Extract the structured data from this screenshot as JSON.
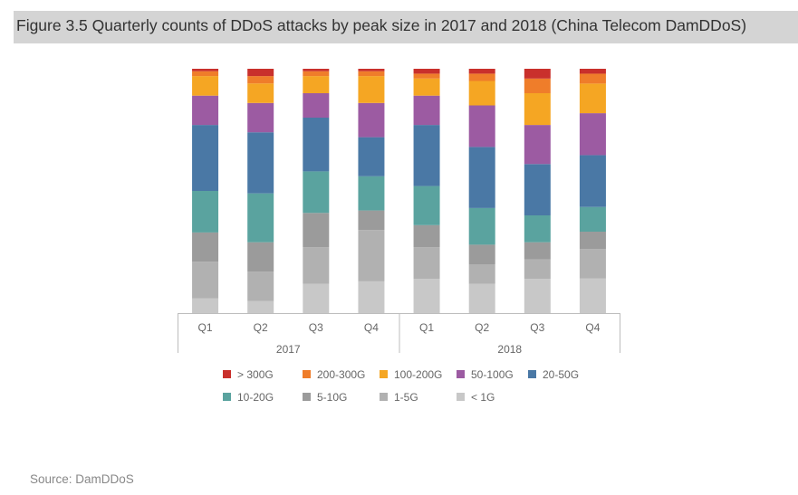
{
  "title": "Figure 3.5 Quarterly counts of DDoS attacks by peak size in 2017 and 2018 (China Telecom DamDDoS)",
  "source": "Source: DamDDoS",
  "chart_data": {
    "type": "bar",
    "stacked": true,
    "normalized": true,
    "categories": [
      "Q1",
      "Q2",
      "Q3",
      "Q4",
      "Q1",
      "Q2",
      "Q3",
      "Q4"
    ],
    "groups": [
      {
        "label": "2017",
        "categories": [
          "Q1",
          "Q2",
          "Q3",
          "Q4"
        ]
      },
      {
        "label": "2018",
        "categories": [
          "Q1",
          "Q2",
          "Q3",
          "Q4"
        ]
      }
    ],
    "series": [
      {
        "name": "< 1G",
        "color": "#c8c8c8",
        "values": [
          6,
          5,
          12,
          13,
          14,
          12,
          14,
          14
        ]
      },
      {
        "name": "1-5G",
        "color": "#b1b1b1",
        "values": [
          15,
          12,
          15,
          21,
          13,
          8,
          8,
          12
        ]
      },
      {
        "name": "5-10G",
        "color": "#9b9b9b",
        "values": [
          12,
          12,
          14,
          8,
          9,
          8,
          7,
          7
        ]
      },
      {
        "name": "10-20G",
        "color": "#5aa39f",
        "values": [
          17,
          20,
          17,
          14,
          16,
          15,
          11,
          10
        ]
      },
      {
        "name": "20-50G",
        "color": "#4a78a5",
        "values": [
          27,
          25,
          22,
          16,
          25,
          25,
          21,
          21
        ]
      },
      {
        "name": "50-100G",
        "color": "#9c5ba2",
        "values": [
          12,
          12,
          10,
          14,
          12,
          17,
          16,
          17
        ]
      },
      {
        "name": "100-200G",
        "color": "#f5a623",
        "values": [
          8,
          8,
          7,
          11,
          7,
          10,
          13,
          12
        ]
      },
      {
        "name": "200-300G",
        "color": "#ef7d2a",
        "values": [
          2,
          3,
          2,
          2,
          2,
          3,
          6,
          4
        ]
      },
      {
        "name": "> 300G",
        "color": "#c9302c",
        "values": [
          1,
          3,
          1,
          1,
          2,
          2,
          4,
          2
        ]
      }
    ],
    "legend_order": [
      "> 300G",
      "200-300G",
      "100-200G",
      "50-100G",
      "20-50G",
      "10-20G",
      "5-10G",
      "1-5G",
      "< 1G"
    ],
    "legend_position": "bottom",
    "y_axis": "hidden",
    "grid": false
  }
}
